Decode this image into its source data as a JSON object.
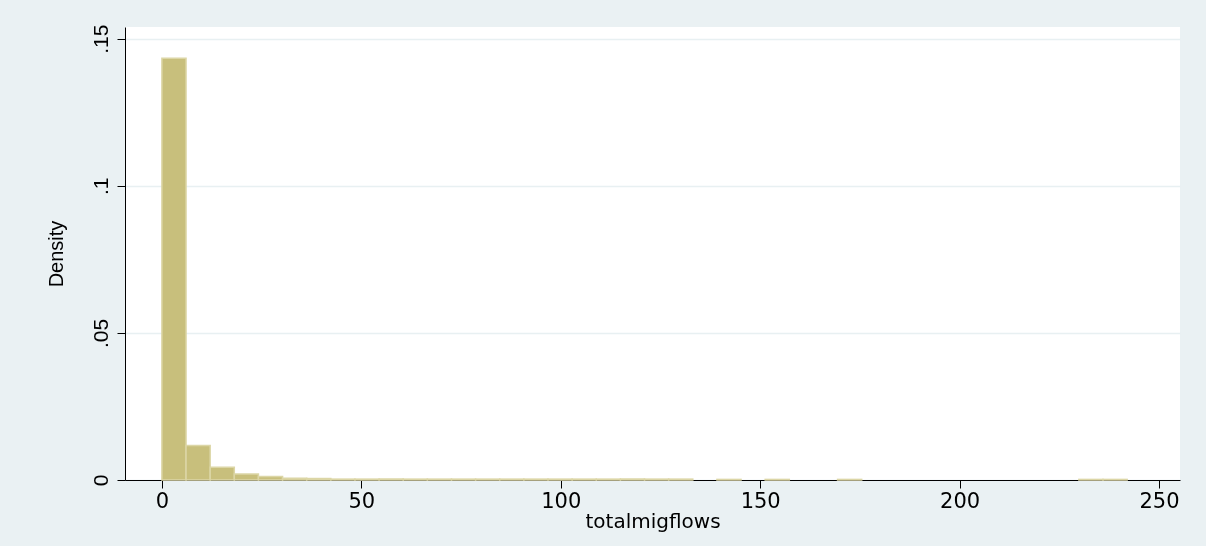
{
  "chart_data": {
    "type": "histogram",
    "xlabel": "totalmigflows",
    "ylabel": "Density",
    "bins": [
      0,
      6.05,
      12.1,
      18.15,
      24.2,
      30.25,
      36.3,
      42.35,
      48.4,
      54.45,
      60.5,
      66.55,
      72.6,
      78.65,
      84.7,
      90.75,
      96.8,
      102.85,
      108.9,
      114.95,
      121,
      127.05,
      133.1,
      139.15,
      145.2,
      151.25,
      157.3,
      163.35,
      169.4,
      175.45,
      181.5,
      187.55,
      193.6,
      199.65,
      205.7,
      211.75,
      217.8,
      223.85,
      229.9,
      235.95,
      242
    ],
    "values": [
      0.1434,
      0.0117,
      0.0043,
      0.002,
      0.0012,
      0.0006,
      0.0005,
      0.0003,
      0.0003,
      0.0003,
      0.0003,
      0.0003,
      0.0003,
      0.0003,
      0.0003,
      0.0003,
      0.0003,
      0.0003,
      0.0003,
      0.0003,
      0.0003,
      0.0003,
      0,
      0.0002,
      0,
      0.0002,
      0,
      0,
      0.0002,
      0,
      0,
      0,
      0,
      0,
      0,
      0,
      0,
      0,
      0.0002,
      0.0002
    ],
    "color": "#c8bf7c",
    "xlim": [
      -8,
      254
    ],
    "xticks": [
      0,
      50,
      100,
      150,
      200,
      250
    ],
    "ylim": [
      0,
      0.154
    ],
    "yticks": [
      {
        "value": 0,
        "label": "0"
      },
      {
        "value": 0.05,
        "label": ".05"
      },
      {
        "value": 0.1,
        "label": ".1"
      },
      {
        "value": 0.15,
        "label": ".15"
      }
    ],
    "grid": "y"
  }
}
